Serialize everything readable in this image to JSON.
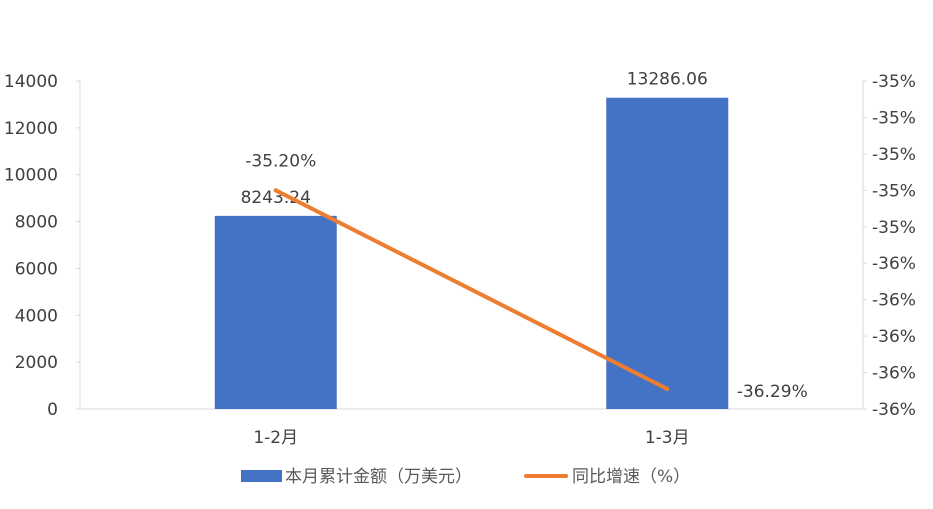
{
  "chart_data": {
    "type": "bar+line",
    "categories": [
      "1-2月",
      "1-3月"
    ],
    "series": [
      {
        "name": "本月累计金额（万美元）",
        "type": "bar",
        "axis": "left",
        "values": [
          8243.24,
          13286.06
        ],
        "labels": [
          "8243.24",
          "13286.06"
        ],
        "color": "#4472C4"
      },
      {
        "name": "同比增速（%）",
        "type": "line",
        "axis": "right",
        "values": [
          -35.2,
          -36.29
        ],
        "labels": [
          "-35.20%",
          "-36.29%"
        ],
        "color": "#ED7D31"
      }
    ],
    "left_axis": {
      "min": 0,
      "max": 14000,
      "step": 2000,
      "tick_labels": [
        "0",
        "2000",
        "4000",
        "6000",
        "8000",
        "10000",
        "12000",
        "14000"
      ]
    },
    "right_axis": {
      "min": -36.4,
      "max": -34.6,
      "step": 0.2,
      "tick_labels": [
        "-36%",
        "-36%",
        "-36%",
        "-36%",
        "-36%",
        "-35%",
        "-35%",
        "-35%",
        "-35%",
        "-35%"
      ]
    },
    "grid": false,
    "legend": "bottom"
  }
}
